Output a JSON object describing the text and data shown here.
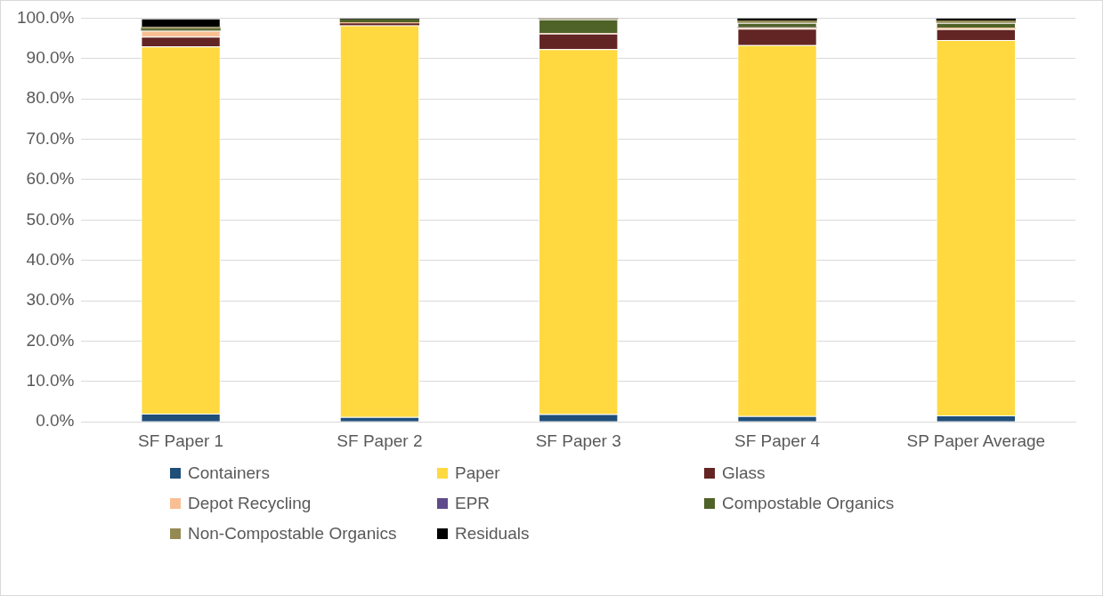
{
  "chart_data": {
    "type": "bar",
    "stacked": true,
    "categories": [
      "SF Paper 1",
      "SF Paper 2",
      "SF Paper 3",
      "SF Paper 4",
      "SP Paper Average"
    ],
    "series": [
      {
        "name": "Containers",
        "color": "#1f4e79",
        "values": [
          2.0,
          1.2,
          1.9,
          1.4,
          1.6
        ]
      },
      {
        "name": "Paper",
        "color": "#ffd93f",
        "values": [
          91.0,
          97.0,
          90.4,
          91.9,
          93.0
        ]
      },
      {
        "name": "Glass",
        "color": "#632523",
        "values": [
          2.4,
          0.5,
          3.9,
          4.1,
          2.7
        ]
      },
      {
        "name": "Depot Recycling",
        "color": "#f8bf94",
        "values": [
          1.5,
          0.3,
          0.1,
          0.2,
          0.3
        ]
      },
      {
        "name": "EPR",
        "color": "#5f4b8b",
        "values": [
          null,
          null,
          null,
          0.1,
          null
        ]
      },
      {
        "name": "Compostable Organics",
        "color": "#4f6228",
        "values": [
          0.5,
          0.7,
          3.4,
          1.1,
          1.2
        ]
      },
      {
        "name": "Non-Compostable Organics",
        "color": "#948a54",
        "values": [
          0.4,
          null,
          0.2,
          0.6,
          0.6
        ]
      },
      {
        "name": "Residuals",
        "color": "#000000",
        "values": [
          2.1,
          0.2,
          0.1,
          0.6,
          0.5
        ]
      }
    ],
    "ylim": [
      0,
      100
    ],
    "yticks": [
      {
        "value": 0,
        "label": "0.0%"
      },
      {
        "value": 10,
        "label": "10.0%"
      },
      {
        "value": 20,
        "label": "20.0%"
      },
      {
        "value": 30,
        "label": "30.0%"
      },
      {
        "value": 40,
        "label": "40.0%"
      },
      {
        "value": 50,
        "label": "50.0%"
      },
      {
        "value": 60,
        "label": "60.0%"
      },
      {
        "value": 70,
        "label": "70.0%"
      },
      {
        "value": 80,
        "label": "80.0%"
      },
      {
        "value": 90,
        "label": "90.0%"
      },
      {
        "value": 100,
        "label": "100.0%"
      }
    ],
    "grid": "y",
    "legend": "bottom"
  }
}
